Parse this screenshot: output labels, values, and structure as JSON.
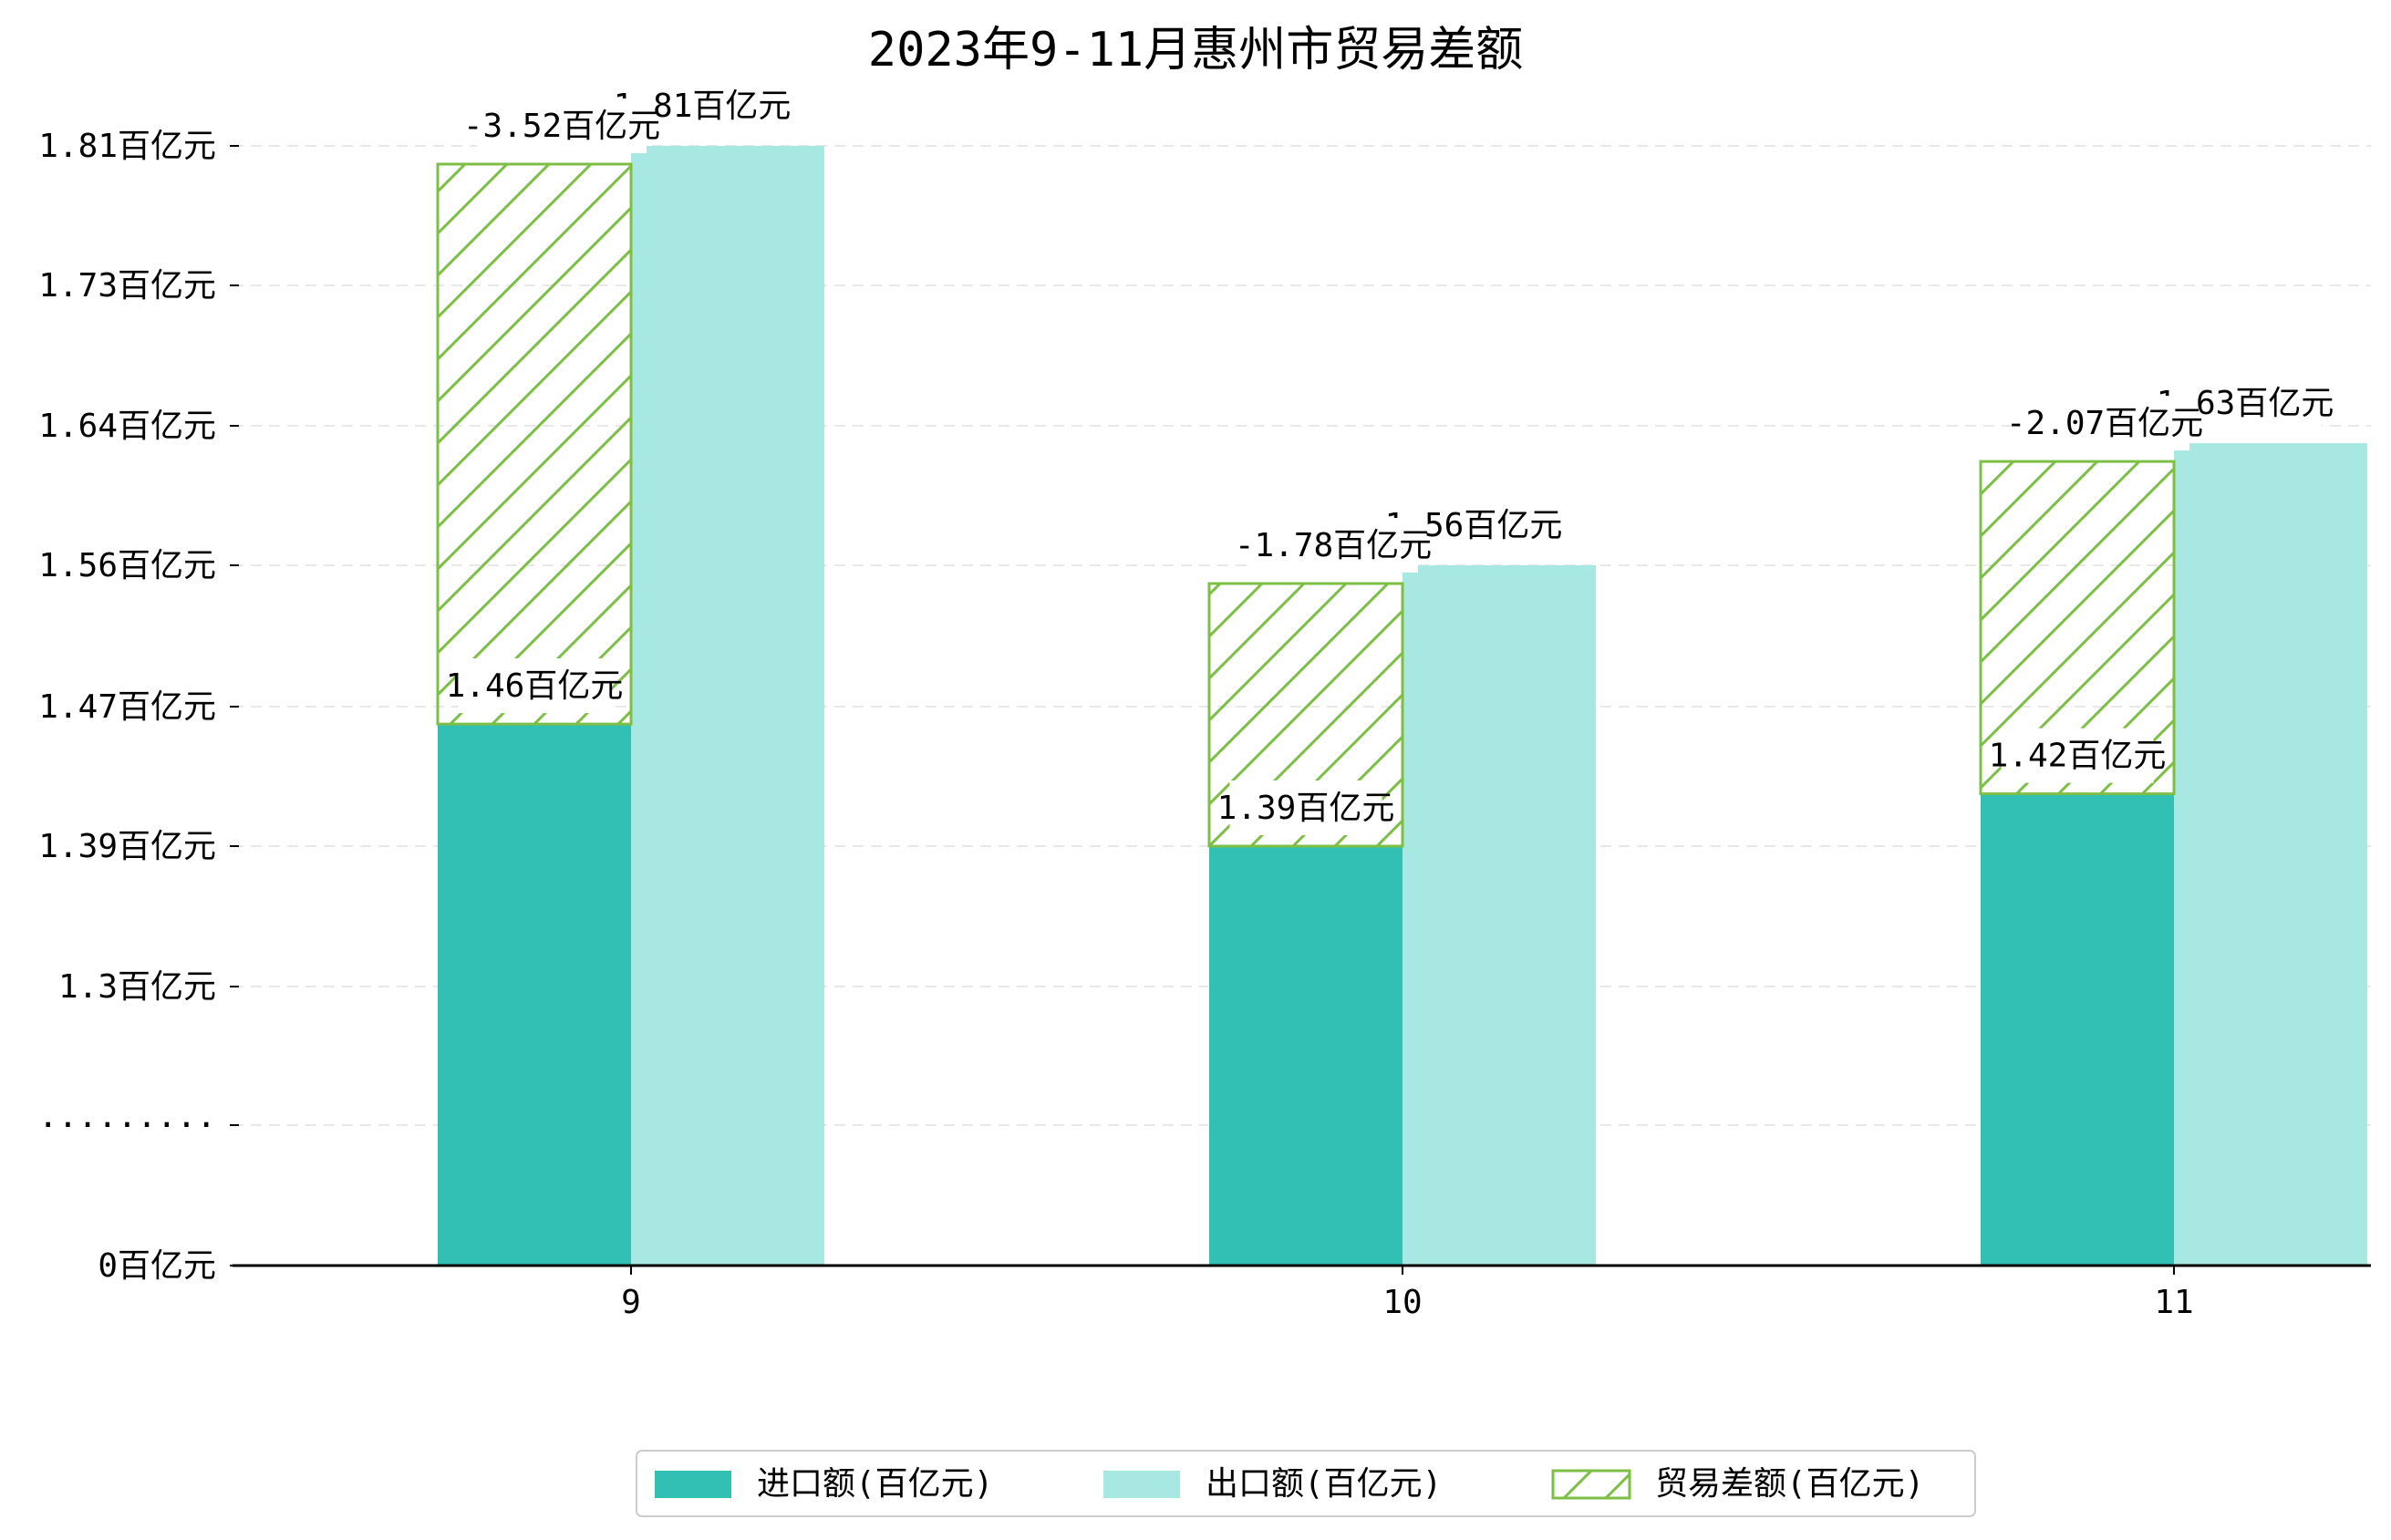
{
  "chart_data": {
    "type": "bar",
    "title": "2023年9-11月惠州市贸易差额",
    "categories": [
      "9",
      "10",
      "11"
    ],
    "y_ticks": [
      "0百亿元",
      "·········",
      "1.3百亿元",
      "1.39百亿元",
      "1.47百亿元",
      "1.56百亿元",
      "1.64百亿元",
      "1.73百亿元",
      "1.81百亿元"
    ],
    "axis_break": "·········",
    "series": [
      {
        "name": "进口额(百亿元)",
        "values": [
          1.46,
          1.39,
          1.42
        ],
        "labels": [
          "1.46百亿元",
          "1.39百亿元",
          "1.42百亿元"
        ],
        "color": "#31c0b3"
      },
      {
        "name": "出口额(百亿元)",
        "values": [
          1.81,
          1.56,
          1.63
        ],
        "labels": [
          "1.81百亿元",
          "1.56百亿元",
          "1.63百亿元"
        ],
        "color": "#a8e8e2"
      },
      {
        "name": "贸易差额(百亿元)",
        "values": [
          -3.52,
          -1.78,
          -2.07
        ],
        "labels": [
          "-3.52百亿元",
          "-1.78百亿元",
          "-2.07百亿元"
        ],
        "color": "#7dbf45",
        "pattern": "hatch"
      }
    ],
    "legend_position": "bottom-center",
    "grid": "horizontal-dashed"
  }
}
